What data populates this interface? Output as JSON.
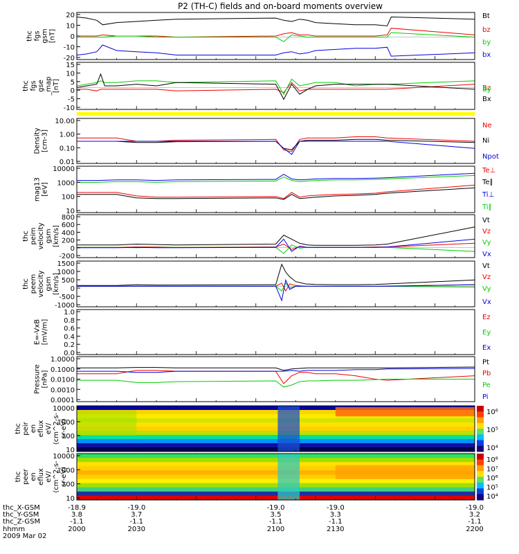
{
  "title": "P2 (TH-C) fields and on-board moments overview",
  "footer": {
    "row_labels": [
      "thc_X-GSM",
      "thc_Y-GSM",
      "thc_Z-GSM",
      "hhmm",
      "2009 Mar 02"
    ],
    "columns": [
      [
        "-18.9",
        "3.8",
        "-1.1",
        "2000"
      ],
      [
        "-19.0",
        "3.7",
        "-1.1",
        "2030"
      ],
      [
        "-19.0",
        "3.5",
        "-1.1",
        "2100"
      ],
      [
        "-19.0",
        "3.3",
        "-1.1",
        "2130"
      ],
      [
        "-19.0",
        "3.2",
        "-1.1",
        "2200"
      ]
    ]
  },
  "chart_data": [
    {
      "type": "line",
      "panel": "fgs_gsm",
      "ylabel": [
        "thc",
        "fgs",
        "gsm",
        "[nT]"
      ],
      "yticks": [
        "20",
        "10",
        "0",
        "-10",
        "-20"
      ],
      "ylim": [
        -20,
        22
      ],
      "x": [
        2000,
        2005,
        2010,
        2013,
        2020,
        2030,
        2040,
        2050,
        2100,
        2104,
        2108,
        2112,
        2116,
        2120,
        2130,
        2140,
        2150,
        2156,
        2158,
        2200
      ],
      "series": [
        {
          "name": "Bt",
          "color": "#000000",
          "values": [
            18,
            17,
            15,
            11,
            13,
            14,
            15,
            16,
            17,
            15,
            14,
            16,
            15,
            13,
            12,
            11,
            11,
            10,
            18,
            16
          ]
        },
        {
          "name": "bz",
          "color": "#ee0000",
          "values": [
            1,
            1,
            1,
            2,
            1,
            1,
            1,
            0,
            1,
            3,
            4,
            2,
            2,
            1,
            1,
            1,
            1,
            2,
            8,
            2
          ]
        },
        {
          "name": "by",
          "color": "#00cc00",
          "values": [
            0,
            0,
            0,
            0,
            1,
            1,
            0,
            0,
            0,
            -4,
            2,
            1,
            0,
            0,
            0,
            0,
            0,
            0,
            4,
            0
          ]
        },
        {
          "name": "bx",
          "color": "#0000dd",
          "values": [
            -16,
            -15,
            -13,
            -7,
            -12,
            -13,
            -14,
            -16,
            -16,
            -14,
            -13,
            -15,
            -14,
            -12,
            -11,
            -10,
            -10,
            -9,
            -17,
            -14
          ]
        }
      ]
    },
    {
      "type": "line",
      "panel": "fgs_gse",
      "ylabel": [
        "thc",
        "fgs",
        "gse",
        "_map",
        "[nT]"
      ],
      "yticks": [
        "15",
        "10",
        "5",
        "0",
        "-5",
        "-10"
      ],
      "ylim": [
        -13,
        15
      ],
      "x": [
        2000,
        2005,
        2010,
        2012,
        2014,
        2020,
        2030,
        2040,
        2050,
        2100,
        2104,
        2108,
        2112,
        2116,
        2120,
        2130,
        2140,
        2150,
        2156,
        2200
      ],
      "series": [
        {
          "name": "Bz",
          "color": "#ee0000",
          "values": [
            -1,
            -1,
            -2,
            -1,
            -1,
            -1,
            -1,
            -1,
            -2,
            -1,
            -3,
            3,
            -2,
            -1,
            -1,
            -1,
            -1,
            -1,
            -1,
            2
          ]
        },
        {
          "name": "By",
          "color": "#00cc00",
          "values": [
            1,
            2,
            3,
            4,
            3,
            3,
            4,
            4,
            3,
            4,
            -4,
            5,
            1,
            2,
            3,
            3,
            1,
            2,
            2,
            4
          ]
        },
        {
          "name": "Bx",
          "color": "#000000",
          "values": [
            0,
            1,
            2,
            8,
            1,
            1,
            2,
            1,
            3,
            2,
            -7,
            2,
            -4,
            -1,
            1,
            2,
            2,
            2,
            2,
            -1
          ]
        }
      ]
    },
    {
      "type": "line",
      "panel": "density",
      "log": true,
      "ylabel": [
        "Density",
        "[cm-3]"
      ],
      "yticks": [
        "10.00",
        "1.00",
        "0.10",
        "0.01"
      ],
      "ylim": [
        0.01,
        10
      ],
      "x": [
        2000,
        2010,
        2020,
        2030,
        2040,
        2050,
        2100,
        2104,
        2108,
        2112,
        2116,
        2120,
        2130,
        2140,
        2150,
        2156,
        2200
      ],
      "series": [
        {
          "name": "Ne",
          "color": "#ee0000",
          "values": [
            0.5,
            0.5,
            0.5,
            0.3,
            0.3,
            0.35,
            0.4,
            0.08,
            0.06,
            0.4,
            0.5,
            0.5,
            0.5,
            0.6,
            0.6,
            0.5,
            0.3
          ]
        },
        {
          "name": "Ni",
          "color": "#000000",
          "values": [
            0.3,
            0.3,
            0.3,
            0.25,
            0.25,
            0.28,
            0.3,
            0.1,
            0.08,
            0.3,
            0.35,
            0.35,
            0.35,
            0.4,
            0.4,
            0.35,
            0.25
          ]
        },
        {
          "name": "Npot",
          "color": "#0000dd",
          "values": [
            0.3,
            0.3,
            0.3,
            0.3,
            0.3,
            0.3,
            0.3,
            0.1,
            0.04,
            0.3,
            0.3,
            0.3,
            0.3,
            0.3,
            0.3,
            0.3,
            0.1
          ]
        }
      ]
    },
    {
      "type": "line",
      "panel": "temperature",
      "log": true,
      "ylabel": [
        "mag13",
        "[eV]"
      ],
      "yticks": [
        "10000",
        "1000",
        "100",
        "10"
      ],
      "ylim": [
        10,
        10000
      ],
      "x": [
        2000,
        2010,
        2020,
        2030,
        2040,
        2050,
        2100,
        2104,
        2108,
        2112,
        2116,
        2120,
        2130,
        2140,
        2150,
        2156,
        2200
      ],
      "series": [
        {
          "name": "Te⊥",
          "color": "#ee0000",
          "values": [
            200,
            200,
            200,
            120,
            100,
            100,
            110,
            80,
            200,
            100,
            120,
            130,
            150,
            160,
            180,
            220,
            600
          ]
        },
        {
          "name": "Te∥",
          "color": "#000000",
          "values": [
            150,
            150,
            150,
            90,
            80,
            80,
            90,
            70,
            150,
            80,
            90,
            100,
            120,
            130,
            150,
            180,
            400
          ]
        },
        {
          "name": "Ti⊥",
          "color": "#0000dd",
          "values": [
            1200,
            1200,
            1300,
            1300,
            1200,
            1300,
            1400,
            3000,
            1500,
            1300,
            1400,
            1500,
            1600,
            1600,
            1700,
            1800,
            3500
          ]
        },
        {
          "name": "Ti∥",
          "color": "#00cc00",
          "values": [
            900,
            900,
            1000,
            1000,
            900,
            1000,
            1100,
            2000,
            1200,
            1000,
            1100,
            1200,
            1300,
            1300,
            1400,
            1500,
            2500
          ]
        }
      ]
    },
    {
      "type": "line",
      "panel": "peim_velocity",
      "ylabel": [
        "thc",
        "peim",
        "velocity",
        "gsm",
        "[km/s]"
      ],
      "yticks": [
        "800",
        "600",
        "400",
        "200",
        "0",
        "-200"
      ],
      "ylim": [
        -250,
        800
      ],
      "x": [
        2000,
        2010,
        2020,
        2030,
        2040,
        2050,
        2100,
        2104,
        2108,
        2112,
        2116,
        2120,
        2130,
        2140,
        2150,
        2156,
        2200
      ],
      "series": [
        {
          "name": "Vt",
          "color": "#000000",
          "values": [
            60,
            60,
            60,
            80,
            70,
            60,
            80,
            300,
            200,
            100,
            60,
            50,
            50,
            50,
            60,
            80,
            500
          ]
        },
        {
          "name": "Vz",
          "color": "#ee0000",
          "values": [
            0,
            0,
            0,
            10,
            10,
            0,
            10,
            80,
            -50,
            20,
            0,
            0,
            0,
            0,
            10,
            10,
            100
          ]
        },
        {
          "name": "Vy",
          "color": "#00cc00",
          "values": [
            0,
            0,
            0,
            -10,
            0,
            0,
            0,
            -150,
            60,
            -20,
            0,
            0,
            0,
            0,
            0,
            0,
            -100
          ]
        },
        {
          "name": "Vx",
          "color": "#0000dd",
          "values": [
            -10,
            -10,
            -10,
            0,
            -10,
            -10,
            0,
            200,
            -100,
            30,
            0,
            0,
            0,
            0,
            0,
            10,
            200
          ]
        }
      ]
    },
    {
      "type": "line",
      "panel": "peem_velocity",
      "ylabel": [
        "thc",
        "peem",
        "velocity",
        "gsm",
        "[km/s]"
      ],
      "yticks": [
        "1500",
        "1000",
        "500",
        "0",
        "-500",
        "-1000"
      ],
      "ylim": [
        -1300,
        1600
      ],
      "x": [
        2000,
        2010,
        2020,
        2030,
        2040,
        2050,
        2100,
        2103,
        2105,
        2107,
        2110,
        2115,
        2120,
        2130,
        2140,
        2150,
        2156,
        2200
      ],
      "series": [
        {
          "name": "Vt",
          "color": "#000000",
          "values": [
            50,
            50,
            50,
            100,
            80,
            80,
            100,
            1400,
            900,
            600,
            300,
            150,
            120,
            100,
            100,
            120,
            150,
            400
          ]
        },
        {
          "name": "Vz",
          "color": "#ee0000",
          "values": [
            0,
            0,
            0,
            20,
            10,
            0,
            10,
            200,
            -300,
            150,
            50,
            0,
            0,
            0,
            0,
            0,
            20,
            100
          ]
        },
        {
          "name": "Vy",
          "color": "#00cc00",
          "values": [
            0,
            0,
            0,
            10,
            0,
            0,
            0,
            -300,
            200,
            -100,
            0,
            0,
            0,
            0,
            0,
            0,
            0,
            -50
          ]
        },
        {
          "name": "Vx",
          "color": "#0000dd",
          "values": [
            0,
            0,
            0,
            0,
            0,
            0,
            0,
            -900,
            400,
            -200,
            0,
            0,
            0,
            0,
            0,
            0,
            0,
            100
          ]
        }
      ]
    },
    {
      "type": "line",
      "panel": "efield",
      "ylabel": [
        "E=-VxB",
        "[mV/m]"
      ],
      "yticks": [
        "1.0",
        "0.8",
        "0.6",
        "0.4",
        "0.2",
        "0.0"
      ],
      "ylim": [
        0,
        1
      ],
      "x": [],
      "series": [
        {
          "name": "Ez",
          "color": "#ee0000",
          "values": []
        },
        {
          "name": "Ey",
          "color": "#00cc00",
          "values": []
        },
        {
          "name": "Ex",
          "color": "#0000dd",
          "values": []
        }
      ]
    },
    {
      "type": "line",
      "panel": "pressure",
      "log": true,
      "ylabel": [
        "Pressure",
        "[nPa]"
      ],
      "yticks": [
        "1.0000",
        "0.1000",
        "0.0100",
        "0.0010",
        "0.0001"
      ],
      "ylim": [
        0.0001,
        1
      ],
      "x": [
        2000,
        2010,
        2020,
        2030,
        2040,
        2050,
        2100,
        2104,
        2108,
        2112,
        2116,
        2120,
        2130,
        2140,
        2150,
        2156,
        2200
      ],
      "series": [
        {
          "name": "Pt",
          "color": "#000000",
          "values": [
            0.1,
            0.1,
            0.1,
            0.11,
            0.11,
            0.1,
            0.1,
            0.06,
            0.08,
            0.09,
            0.1,
            0.1,
            0.1,
            0.1,
            0.1,
            0.1,
            0.12
          ]
        },
        {
          "name": "Pb",
          "color": "#ee0000",
          "values": [
            0.03,
            0.03,
            0.03,
            0.06,
            0.06,
            0.05,
            0.05,
            0.004,
            0.02,
            0.04,
            0.04,
            0.03,
            0.03,
            0.02,
            0.01,
            0.008,
            0.02
          ]
        },
        {
          "name": "Pe",
          "color": "#00cc00",
          "values": [
            0.008,
            0.008,
            0.008,
            0.005,
            0.005,
            0.006,
            0.007,
            0.002,
            0.003,
            0.006,
            0.007,
            0.007,
            0.008,
            0.008,
            0.009,
            0.01,
            0.01
          ]
        },
        {
          "name": "Pi",
          "color": "#0000dd",
          "values": [
            0.05,
            0.05,
            0.05,
            0.04,
            0.04,
            0.05,
            0.05,
            0.05,
            0.06,
            0.05,
            0.06,
            0.06,
            0.06,
            0.07,
            0.07,
            0.08,
            0.09
          ]
        }
      ]
    },
    {
      "type": "heatmap",
      "panel": "peir_spec",
      "ylabel": [
        "thc",
        "peir",
        "en",
        "eflux",
        "eV/",
        "(cm^2-s-",
        "sr-eV)"
      ],
      "yticks": [
        "10000",
        "1000",
        "100",
        "10"
      ],
      "colorbar_ticks": [
        "10⁶",
        "10⁵",
        "10⁴"
      ]
    },
    {
      "type": "heatmap",
      "panel": "peer_spec",
      "ylabel": [
        "thc",
        "peer",
        "en",
        "eflux",
        "eV/",
        "(cm^2-s-",
        "sr-eV)"
      ],
      "yticks": [
        "10000",
        "1000",
        "100",
        "10"
      ],
      "colorbar_ticks": [
        "10⁸",
        "10⁷",
        "10⁶",
        "10⁵",
        "10⁴"
      ]
    }
  ]
}
